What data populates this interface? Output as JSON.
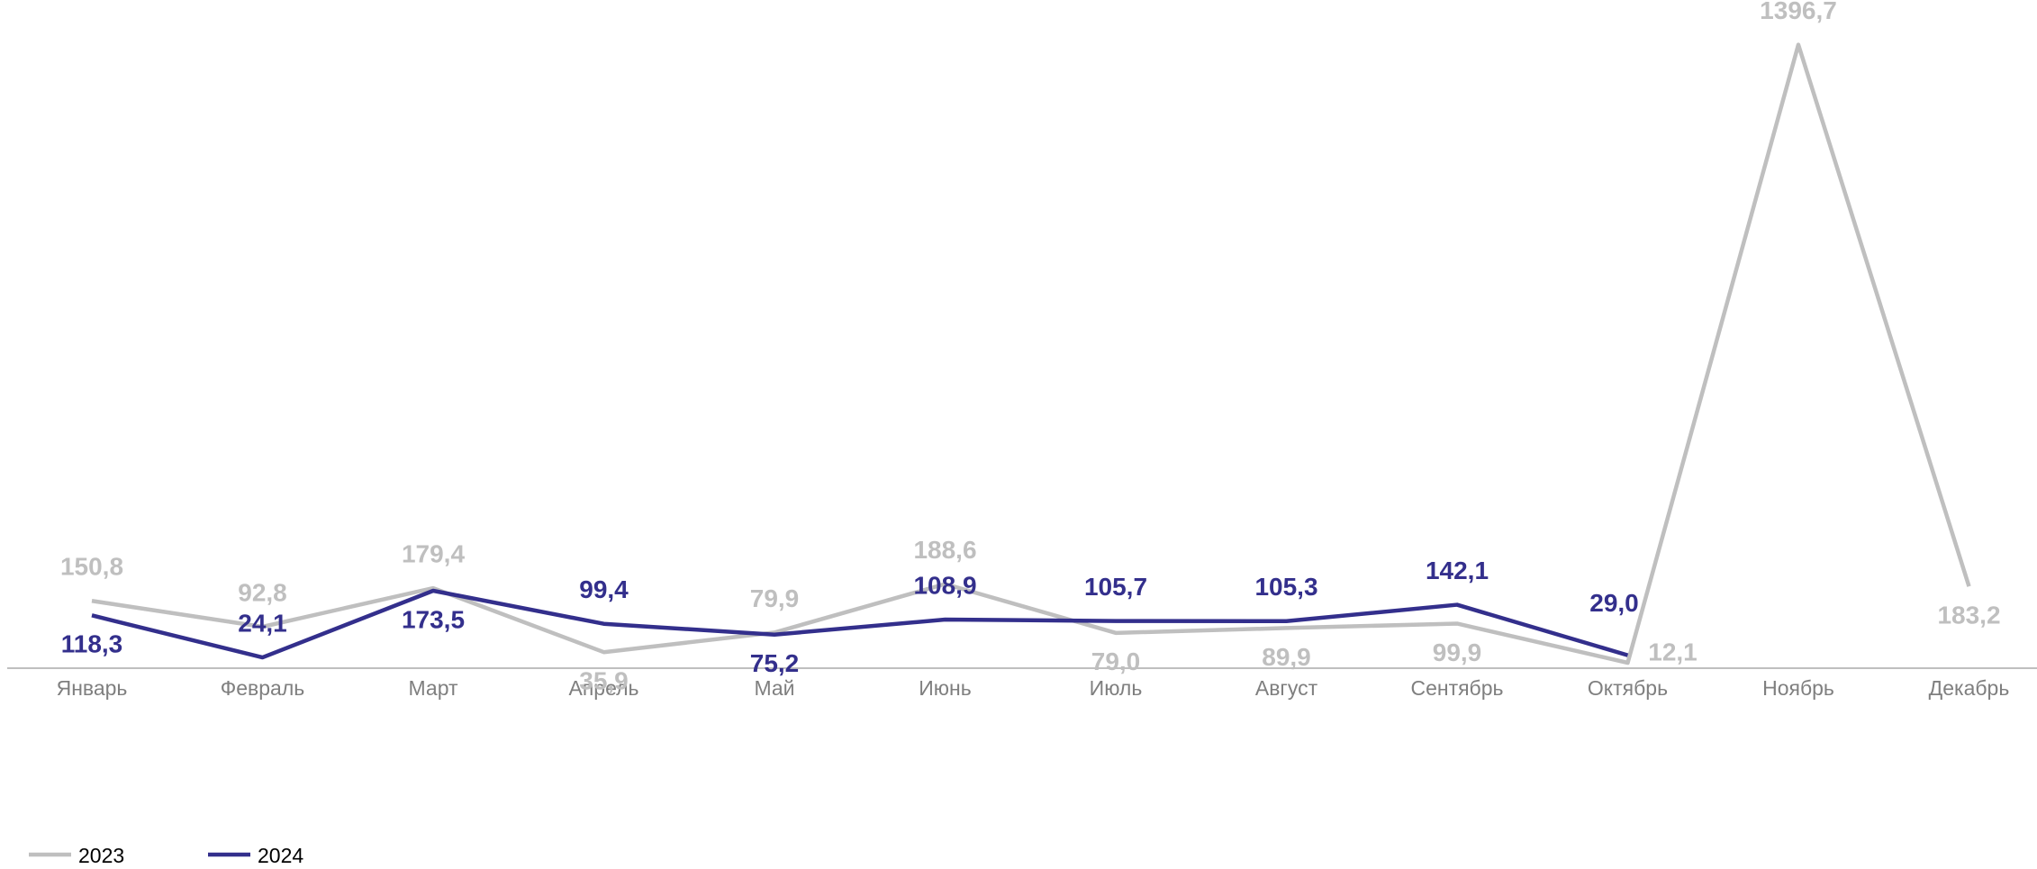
{
  "chart_data": {
    "type": "line",
    "categories": [
      "Январь",
      "Февраль",
      "Март",
      "Апрель",
      "Май",
      "Июнь",
      "Июль",
      "Август",
      "Сентябрь",
      "Октябрь",
      "Ноябрь",
      "Декабрь"
    ],
    "series": [
      {
        "name": "2023",
        "color": "#bfbfbf",
        "values": [
          150.8,
          92.8,
          179.4,
          35.9,
          79.9,
          188.6,
          79.0,
          89.9,
          99.9,
          12.1,
          1396.7,
          183.2
        ],
        "value_labels": [
          "150,8",
          "92,8",
          "179,4",
          "35,9",
          "79,9",
          "188,6",
          "79,0",
          "89,9",
          "99,9",
          "12,1",
          "1396,7",
          "183,2"
        ]
      },
      {
        "name": "2024",
        "color": "#332f8c",
        "values": [
          118.3,
          24.1,
          173.5,
          99.4,
          75.2,
          108.9,
          105.7,
          105.3,
          142.1,
          29.0,
          null,
          null
        ],
        "value_labels": [
          "118,3",
          "24,1",
          "173,5",
          "99,4",
          "75,2",
          "108,9",
          "105,7",
          "105,3",
          "142,1",
          "29,0",
          null,
          null
        ]
      }
    ],
    "ylim": [
      0,
      1400
    ],
    "legend": "bottom-left"
  }
}
